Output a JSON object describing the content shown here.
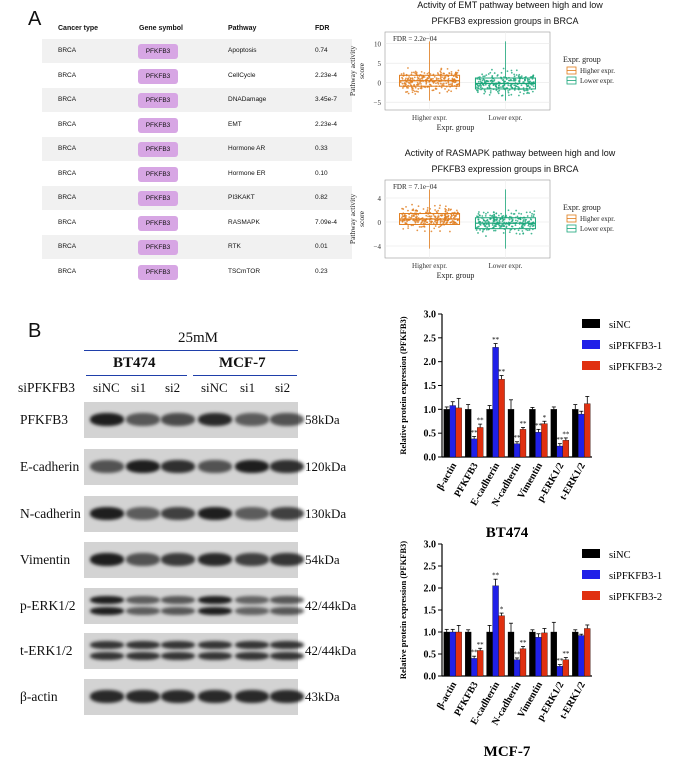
{
  "panel_a_label": "A",
  "panel_b_label": "B",
  "table": {
    "headers": [
      "Cancer type",
      "Gene symbol",
      "Pathway",
      "FDR"
    ],
    "rows": [
      [
        "BRCA",
        "PFKFB3",
        "Apoptosis",
        "0.74"
      ],
      [
        "BRCA",
        "PFKFB3",
        "CellCycle",
        "2.23e-4"
      ],
      [
        "BRCA",
        "PFKFB3",
        "DNADamage",
        "3.45e-7"
      ],
      [
        "BRCA",
        "PFKFB3",
        "EMT",
        "2.23e-4"
      ],
      [
        "BRCA",
        "PFKFB3",
        "Hormone AR",
        "0.33"
      ],
      [
        "BRCA",
        "PFKFB3",
        "Hormone ER",
        "0.10"
      ],
      [
        "BRCA",
        "PFKFB3",
        "PI3KAKT",
        "0.82"
      ],
      [
        "BRCA",
        "PFKFB3",
        "RASMAPK",
        "7.09e-4"
      ],
      [
        "BRCA",
        "PFKFB3",
        "RTK",
        "0.01"
      ],
      [
        "BRCA",
        "PFKFB3",
        "TSCmTOR",
        "0.23"
      ]
    ]
  },
  "boxplots": [
    {
      "title1": "Activity of EMT pathway between high and low",
      "title2": "PFKFB3 expression groups in BRCA",
      "fdr": "FDR = 2.2e−04",
      "ylabel1": "Pathway activity",
      "ylabel2": "score",
      "xlabel": "Expr. group",
      "yticks": [
        "−5",
        "0",
        "5",
        "10"
      ],
      "ylim": [
        -7,
        13
      ],
      "groups": [
        "Higher expr.",
        "Lower expr."
      ],
      "legend_title": "Expr. group",
      "legend": [
        "Higher expr.",
        "Lower expr."
      ]
    },
    {
      "title1": "Activity of RASMAPK pathway between high and low",
      "title2": "PFKFB3 expression groups in BRCA",
      "fdr": "FDR = 7.1e−04",
      "ylabel1": "Pathway activity",
      "ylabel2": "score",
      "xlabel": "Expr. group",
      "yticks": [
        "−4",
        "0",
        "4"
      ],
      "ylim": [
        -6,
        7
      ],
      "groups": [
        "Higher expr.",
        "Lower expr."
      ],
      "legend_title": "Expr. group",
      "legend": [
        "Higher expr.",
        "Lower expr."
      ]
    }
  ],
  "western_blot": {
    "concentration": "25mM",
    "cell_lines": [
      "BT474",
      "MCF-7"
    ],
    "row_label": "siPFKFB3",
    "lanes": [
      "siNC",
      "si1",
      "si2",
      "siNC",
      "si1",
      "si2"
    ],
    "proteins": [
      "PFKFB3",
      "E-cadherin",
      "N-cadherin",
      "Vimentin",
      "p-ERK1/2",
      "t-ERK1/2",
      "β-actin"
    ],
    "sizes": [
      "58kDa",
      "120kDa",
      "130kDa",
      "54kDa",
      "42/44kDa",
      "42/44kDa",
      "43kDa"
    ]
  },
  "chart_data": [
    {
      "type": "bar",
      "title": "BT474",
      "ylabel": "Relative protein expression (PFKFB3)",
      "ylim": [
        0,
        3.0
      ],
      "yticks": [
        "0.0",
        "0.5",
        "1.0",
        "1.5",
        "2.0",
        "2.5",
        "3.0"
      ],
      "categories": [
        "β-actin",
        "PFKFB3",
        "E-cadherin",
        "N-cadherin",
        "Vimentin",
        "p-ERK1/2",
        "t-ERK1/2"
      ],
      "series": [
        {
          "name": "siNC",
          "color": "#000000",
          "values": [
            1.0,
            1.0,
            1.0,
            1.0,
            1.0,
            1.0,
            1.0
          ],
          "errors": [
            0.05,
            0.1,
            0.08,
            0.2,
            0.04,
            0.05,
            0.1
          ],
          "stars": [
            "",
            "",
            "",
            "",
            "",
            "",
            ""
          ]
        },
        {
          "name": "siPFKFB3-1",
          "color": "#2020e8",
          "values": [
            1.08,
            0.38,
            2.3,
            0.28,
            0.52,
            0.23,
            0.9
          ],
          "errors": [
            0.08,
            0.05,
            0.08,
            0.04,
            0.06,
            0.05,
            0.06
          ],
          "stars": [
            "",
            "**",
            "**",
            "**",
            "**",
            "**",
            ""
          ]
        },
        {
          "name": "siPFKFB3-2",
          "color": "#e03010",
          "values": [
            1.03,
            0.62,
            1.63,
            0.58,
            0.7,
            0.35,
            1.12
          ],
          "errors": [
            0.2,
            0.07,
            0.08,
            0.04,
            0.05,
            0.05,
            0.15
          ],
          "stars": [
            "",
            "**",
            "**",
            "**",
            "*",
            "**",
            ""
          ]
        }
      ]
    },
    {
      "type": "bar",
      "title": "MCF-7",
      "ylabel": "Relative protein expression (PFKFB3)",
      "ylim": [
        0,
        3.0
      ],
      "yticks": [
        "0.0",
        "0.5",
        "1.0",
        "1.5",
        "2.0",
        "2.5",
        "3.0"
      ],
      "categories": [
        "β-actin",
        "PFKFB3",
        "E-cadherin",
        "N-cadherin",
        "Vimentin",
        "p-ERK1/2",
        "t-ERK1/2"
      ],
      "series": [
        {
          "name": "siNC",
          "color": "#000000",
          "values": [
            1.0,
            1.0,
            1.0,
            1.0,
            1.0,
            1.0,
            1.0
          ],
          "errors": [
            0.06,
            0.05,
            0.15,
            0.2,
            0.05,
            0.22,
            0.05
          ],
          "stars": [
            "",
            "",
            "",
            "",
            "",
            "",
            ""
          ]
        },
        {
          "name": "siPFKFB3-1",
          "color": "#2020e8",
          "values": [
            1.0,
            0.4,
            2.05,
            0.37,
            0.88,
            0.22,
            0.92
          ],
          "errors": [
            0.06,
            0.05,
            0.15,
            0.04,
            0.08,
            0.04,
            0.03
          ],
          "stars": [
            "",
            "**",
            "**",
            "**",
            "",
            "**",
            ""
          ]
        },
        {
          "name": "siPFKFB3-2",
          "color": "#e03010",
          "values": [
            1.0,
            0.58,
            1.37,
            0.62,
            0.98,
            0.37,
            1.08
          ],
          "errors": [
            0.15,
            0.05,
            0.06,
            0.05,
            0.1,
            0.05,
            0.08
          ],
          "stars": [
            "",
            "**",
            "*",
            "**",
            "",
            "**",
            ""
          ]
        }
      ]
    }
  ]
}
